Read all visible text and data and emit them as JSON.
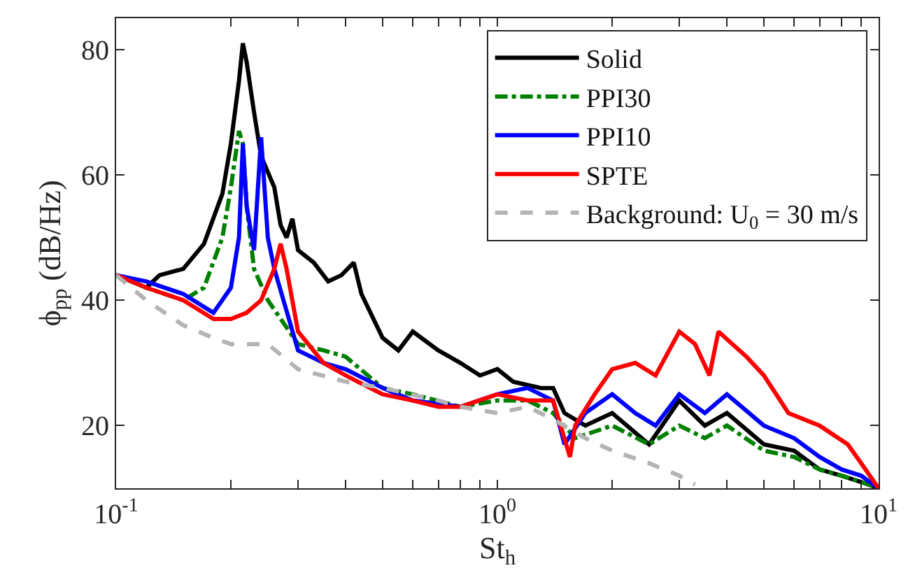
{
  "chart_data": {
    "type": "line",
    "xlabel": "St$_{h}$",
    "ylabel": "ϕ$_{pp}$ (dB/Hz)",
    "log": "x",
    "legend": "top right",
    "marker": "none",
    "xlim": [
      0.1,
      10
    ],
    "ylim": [
      10,
      85
    ],
    "xticks": [
      {
        "value": 0.1,
        "label": "10$^{-1}$"
      },
      {
        "value": 0.2,
        "label": null
      },
      {
        "value": 0.3,
        "label": null
      },
      {
        "value": 0.4,
        "label": null
      },
      {
        "value": 0.5,
        "label": null
      },
      {
        "value": 0.6,
        "label": null
      },
      {
        "value": 0.7,
        "label": null
      },
      {
        "value": 0.8,
        "label": null
      },
      {
        "value": 0.9,
        "label": null
      },
      {
        "value": 1,
        "label": "10$^{0}$"
      },
      {
        "value": 2,
        "label": null
      },
      {
        "value": 3,
        "label": null
      },
      {
        "value": 4,
        "label": null
      },
      {
        "value": 5,
        "label": null
      },
      {
        "value": 6,
        "label": null
      },
      {
        "value": 7,
        "label": null
      },
      {
        "value": 8,
        "label": null
      },
      {
        "value": 9,
        "label": null
      },
      {
        "value": 10,
        "label": "10$^{1}$"
      }
    ],
    "yticks": [
      20,
      40,
      60,
      80
    ],
    "series": [
      {
        "name": "Solid",
        "color": "#000000",
        "line_style": "solid",
        "x": [
          0.1,
          0.12,
          0.13,
          0.15,
          0.17,
          0.19,
          0.2,
          0.21,
          0.215,
          0.22,
          0.23,
          0.24,
          0.26,
          0.27,
          0.28,
          0.29,
          0.3,
          0.33,
          0.36,
          0.39,
          0.42,
          0.44,
          0.5,
          0.55,
          0.6,
          0.7,
          0.8,
          0.9,
          1.0,
          1.1,
          1.3,
          1.4,
          1.5,
          1.7,
          2.0,
          2.5,
          3.0,
          3.5,
          4.0,
          5.0,
          6.0,
          7.0,
          8.0,
          9.0,
          10.0
        ],
        "values": [
          44,
          42,
          44,
          45,
          49,
          57,
          65,
          75,
          81,
          78,
          70,
          63,
          58,
          52,
          50,
          53,
          48,
          46,
          43,
          44,
          46,
          41,
          34,
          32,
          35,
          32,
          30,
          28,
          29,
          27,
          26,
          26,
          22,
          20,
          22,
          17,
          24,
          20,
          22,
          17,
          16,
          13,
          12,
          11,
          10
        ]
      },
      {
        "name": "PPI30",
        "color": "#008000",
        "line_style": "dashdot",
        "x": [
          0.1,
          0.12,
          0.15,
          0.17,
          0.19,
          0.2,
          0.21,
          0.215,
          0.22,
          0.23,
          0.25,
          0.3,
          0.35,
          0.4,
          0.5,
          0.6,
          0.8,
          1.0,
          1.2,
          1.4,
          1.6,
          2.0,
          2.5,
          3.0,
          3.5,
          4.0,
          5.0,
          6.0,
          7.0,
          8.0,
          9.0,
          10.0
        ],
        "values": [
          44,
          42,
          40,
          42,
          50,
          58,
          67,
          65,
          55,
          45,
          40,
          33,
          32,
          31,
          26,
          25,
          23,
          24,
          24,
          22,
          18,
          20,
          17,
          20,
          18,
          20,
          16,
          15,
          13,
          12,
          11,
          10
        ]
      },
      {
        "name": "PPI10",
        "color": "#0000ff",
        "line_style": "solid",
        "x": [
          0.1,
          0.12,
          0.15,
          0.18,
          0.2,
          0.21,
          0.215,
          0.22,
          0.23,
          0.24,
          0.25,
          0.26,
          0.3,
          0.35,
          0.4,
          0.5,
          0.6,
          0.8,
          1.0,
          1.2,
          1.4,
          1.5,
          1.7,
          2.0,
          2.3,
          2.6,
          3.0,
          3.5,
          4.0,
          5.0,
          6.0,
          7.0,
          8.0,
          9.0,
          10.0
        ],
        "values": [
          44,
          43,
          41,
          38,
          42,
          50,
          65,
          55,
          48,
          66,
          50,
          45,
          32,
          30,
          29,
          26,
          24,
          23,
          25,
          26,
          24,
          17,
          22,
          25,
          22,
          20,
          25,
          22,
          25,
          20,
          18,
          15,
          13,
          12,
          10
        ]
      },
      {
        "name": "SPTE",
        "color": "#ff0000",
        "line_style": "solid",
        "x": [
          0.1,
          0.12,
          0.15,
          0.18,
          0.2,
          0.22,
          0.24,
          0.26,
          0.27,
          0.28,
          0.3,
          0.35,
          0.4,
          0.5,
          0.6,
          0.7,
          0.8,
          1.0,
          1.2,
          1.4,
          1.55,
          1.6,
          1.8,
          2.0,
          2.3,
          2.6,
          3.0,
          3.3,
          3.6,
          3.8,
          4.5,
          5.0,
          5.8,
          7.0,
          8.3,
          9.0,
          10.0
        ],
        "values": [
          44,
          42,
          40,
          37,
          37,
          38,
          40,
          45,
          49,
          45,
          35,
          30,
          28,
          25,
          24,
          23,
          23,
          25,
          24,
          24,
          15,
          20,
          25,
          29,
          30,
          28,
          35,
          33,
          28,
          35,
          31,
          28,
          22,
          20,
          17,
          14,
          10
        ]
      },
      {
        "name": "Background: U$_{0}$ = 30 m/s",
        "color": "#b4b4b4",
        "line_style": "dashed",
        "x": [
          0.1,
          0.12,
          0.15,
          0.18,
          0.2,
          0.25,
          0.3,
          0.4,
          0.5,
          0.7,
          0.8,
          1.0,
          1.2,
          1.4,
          1.7,
          2.0,
          2.5,
          3.0,
          3.3
        ],
        "values": [
          44,
          40,
          36,
          34,
          33,
          33,
          29,
          27,
          26,
          24,
          23,
          22,
          23,
          21,
          18,
          16,
          14,
          12,
          10.6
        ]
      }
    ]
  }
}
